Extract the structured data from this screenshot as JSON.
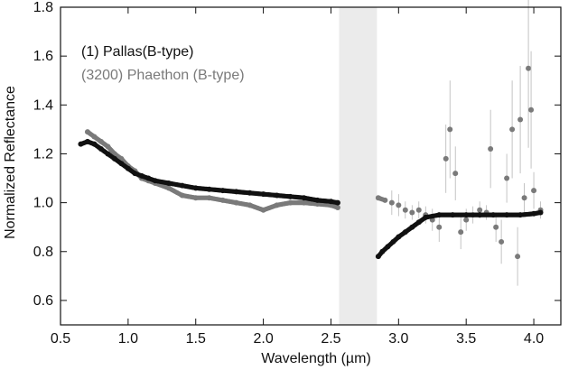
{
  "chart_data": {
    "type": "scatter",
    "title": "",
    "xlabel": "Wavelength (µm)",
    "ylabel": "Normalized Reflectance",
    "xlim": [
      0.5,
      4.2
    ],
    "ylim": [
      0.5,
      1.8
    ],
    "x_ticks": [
      {
        "value": 0.5,
        "label": "0.5"
      },
      {
        "value": 1.0,
        "label": "1.0"
      },
      {
        "value": 1.5,
        "label": "1.5"
      },
      {
        "value": 2.0,
        "label": "2.0"
      },
      {
        "value": 2.5,
        "label": "2.5"
      },
      {
        "value": 3.0,
        "label": "3.0"
      },
      {
        "value": 3.5,
        "label": "3.5"
      },
      {
        "value": 4.0,
        "label": "4.0"
      }
    ],
    "y_ticks": [
      {
        "value": 0.6,
        "label": "0.6"
      },
      {
        "value": 0.8,
        "label": "0.8"
      },
      {
        "value": 1.0,
        "label": "1.0"
      },
      {
        "value": 1.2,
        "label": "1.2"
      },
      {
        "value": 1.4,
        "label": "1.4"
      },
      {
        "value": 1.6,
        "label": "1.6"
      },
      {
        "value": 1.8,
        "label": "1.8"
      }
    ],
    "shaded_region": {
      "x_start": 2.56,
      "x_end": 2.84,
      "color": "#ebebeb"
    },
    "legend": [
      {
        "label": "(1) Pallas(B-type)",
        "color": "#111111"
      },
      {
        "label": "(3200) Phaethon (B-type)",
        "color": "#7a7a7a"
      }
    ],
    "series": [
      {
        "name": "(1) Pallas(B-type)",
        "color": "#111111",
        "x": [
          0.65,
          0.7,
          0.75,
          0.8,
          0.85,
          0.9,
          0.95,
          1.0,
          1.05,
          1.1,
          1.15,
          1.2,
          1.3,
          1.4,
          1.5,
          1.6,
          1.7,
          1.8,
          1.9,
          2.0,
          2.1,
          2.2,
          2.3,
          2.4,
          2.5,
          2.55,
          2.85,
          2.88,
          2.92,
          2.96,
          3.0,
          3.05,
          3.1,
          3.15,
          3.2,
          3.3,
          3.4,
          3.5,
          3.6,
          3.7,
          3.8,
          3.9,
          4.0,
          4.05
        ],
        "y": [
          1.24,
          1.25,
          1.24,
          1.22,
          1.2,
          1.18,
          1.16,
          1.14,
          1.12,
          1.11,
          1.1,
          1.09,
          1.08,
          1.07,
          1.06,
          1.055,
          1.05,
          1.045,
          1.04,
          1.035,
          1.03,
          1.025,
          1.02,
          1.01,
          1.005,
          1.0,
          0.78,
          0.8,
          0.82,
          0.84,
          0.86,
          0.88,
          0.9,
          0.92,
          0.94,
          0.95,
          0.95,
          0.95,
          0.95,
          0.95,
          0.95,
          0.95,
          0.955,
          0.96
        ]
      },
      {
        "name": "(3200) Phaethon (B-type)",
        "color": "#7a7a7a",
        "x": [
          0.7,
          0.75,
          0.8,
          0.85,
          0.9,
          0.95,
          1.0,
          1.05,
          1.1,
          1.15,
          1.2,
          1.3,
          1.4,
          1.5,
          1.6,
          1.7,
          1.8,
          1.9,
          2.0,
          2.1,
          2.2,
          2.3,
          2.4,
          2.5,
          2.55,
          2.85,
          2.9,
          2.95,
          3.0,
          3.05,
          3.1,
          3.15,
          3.2,
          3.25,
          3.3,
          3.35,
          3.38,
          3.42,
          3.46,
          3.5,
          3.55,
          3.6,
          3.65,
          3.68,
          3.72,
          3.76,
          3.8,
          3.84,
          3.88,
          3.9,
          3.93,
          3.96,
          3.98,
          4.0,
          4.05
        ],
        "y": [
          1.29,
          1.27,
          1.25,
          1.23,
          1.2,
          1.18,
          1.15,
          1.13,
          1.1,
          1.09,
          1.08,
          1.06,
          1.03,
          1.02,
          1.02,
          1.01,
          1.0,
          0.99,
          0.97,
          0.99,
          1.0,
          1.0,
          0.995,
          0.99,
          0.98,
          1.02,
          1.01,
          1.0,
          0.99,
          0.97,
          0.96,
          0.97,
          0.95,
          0.93,
          0.9,
          1.18,
          1.3,
          1.12,
          0.88,
          0.93,
          0.95,
          0.97,
          0.96,
          1.22,
          0.9,
          0.84,
          1.1,
          1.3,
          0.78,
          1.34,
          1.02,
          1.55,
          1.38,
          1.05,
          0.97
        ]
      }
    ]
  }
}
